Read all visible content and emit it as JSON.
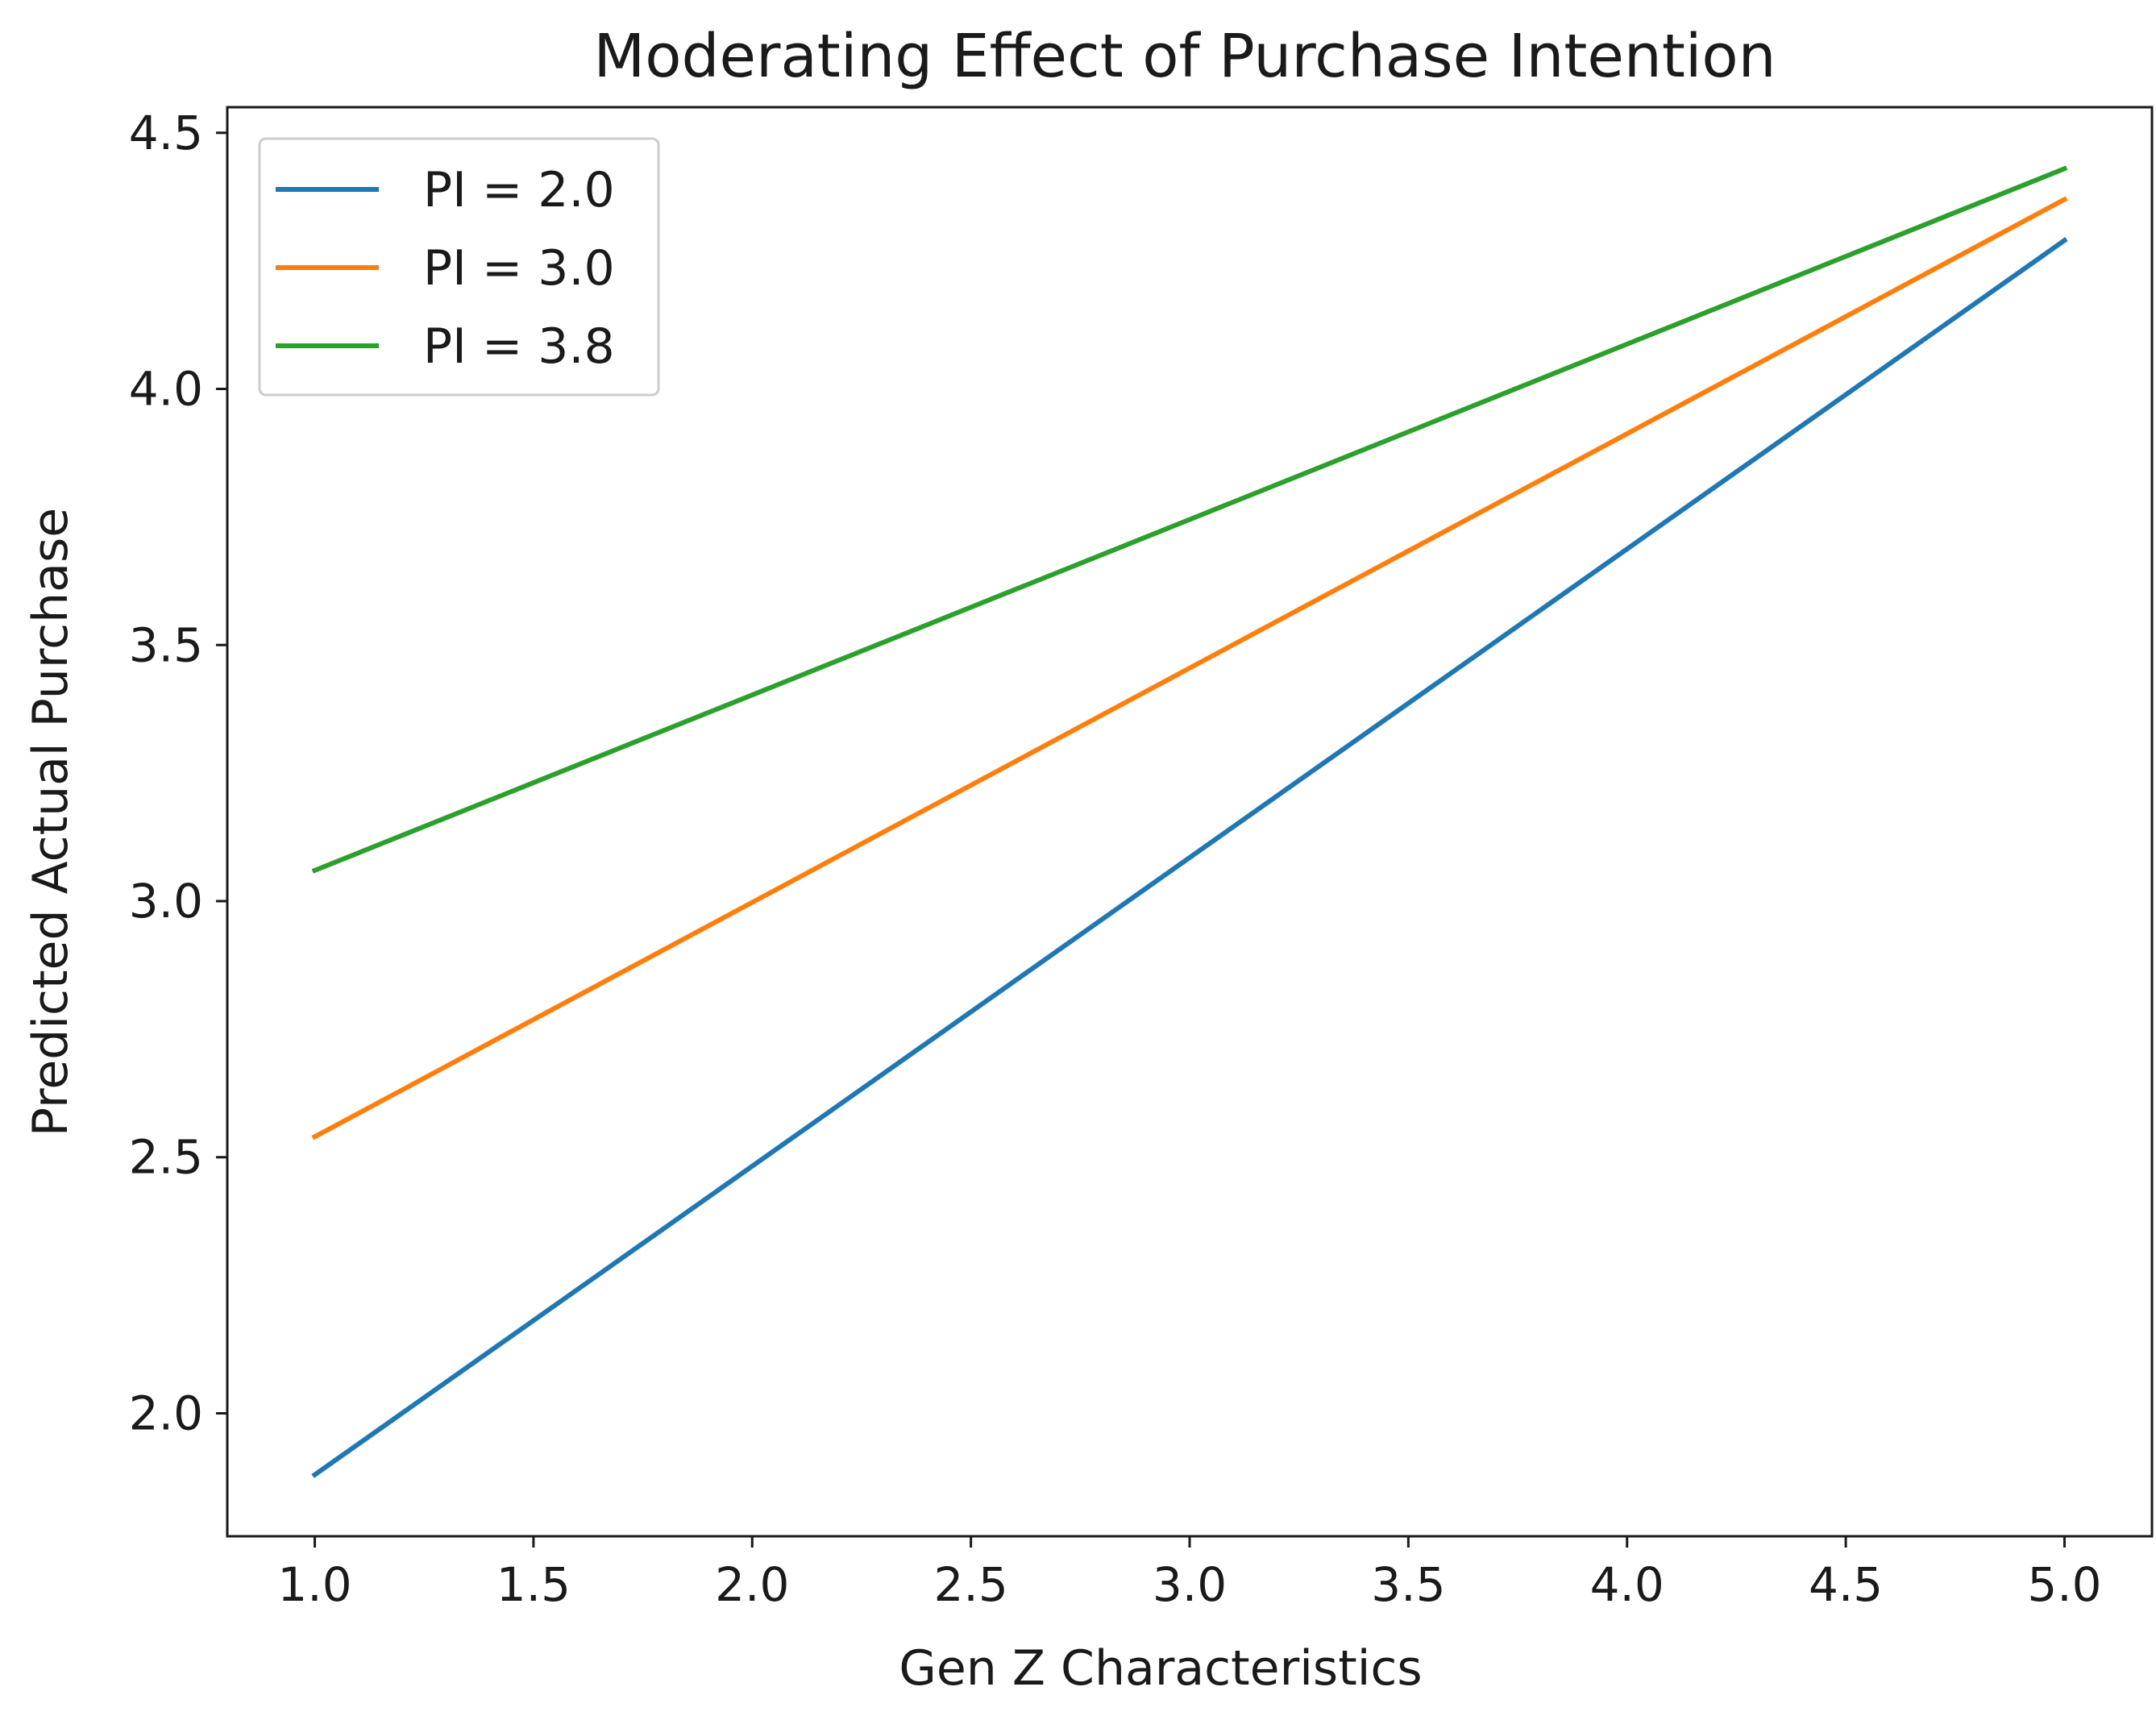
{
  "chart_data": {
    "type": "line",
    "title": "Moderating Effect of Purchase Intention",
    "xlabel": "Gen Z Characteristics",
    "ylabel": "Predicted Actual Purchase",
    "xlim": [
      0.8,
      5.2
    ],
    "ylim": [
      1.76,
      4.55
    ],
    "xticks": [
      1.0,
      1.5,
      2.0,
      2.5,
      3.0,
      3.5,
      4.0,
      4.5,
      5.0
    ],
    "xtick_labels": [
      "1.0",
      "1.5",
      "2.0",
      "2.5",
      "3.0",
      "3.5",
      "4.0",
      "4.5",
      "5.0"
    ],
    "yticks": [
      2.0,
      2.5,
      3.0,
      3.5,
      4.0,
      4.5
    ],
    "ytick_labels": [
      "2.0",
      "2.5",
      "3.0",
      "3.5",
      "4.0",
      "4.5"
    ],
    "grid": false,
    "legend_position": "top-left",
    "x": [
      1.0,
      5.0
    ],
    "series": [
      {
        "name": "PI = 2.0",
        "color": "#1f77b4",
        "values": [
          1.88,
          4.29
        ]
      },
      {
        "name": "PI = 3.0",
        "color": "#ff7f0e",
        "values": [
          2.54,
          4.37
        ]
      },
      {
        "name": "PI = 3.8",
        "color": "#2ca02c",
        "values": [
          3.06,
          4.43
        ]
      }
    ]
  }
}
